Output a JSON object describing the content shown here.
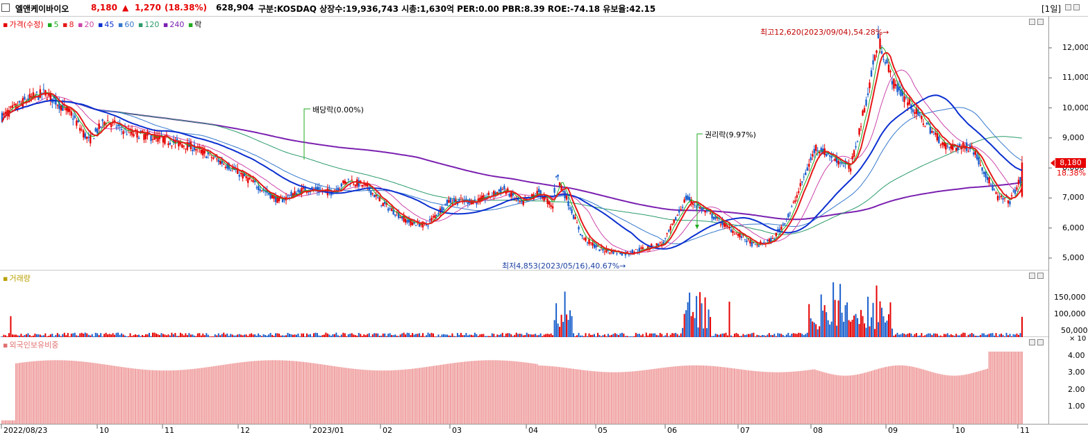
{
  "header": {
    "name": "엘앤케이바이오",
    "price": "8,180",
    "change_arrow": "▲",
    "change": "1,270",
    "change_pct": "(18.38%)",
    "volume": "628,904",
    "info": "구분:KOSDAQ 상장수:19,936,743 시총:1,630억 PER:0.00 PBR:8.39 ROE:-74.18 유보율:42.15",
    "period": "[1일]"
  },
  "colors": {
    "up": "#e60000",
    "down": "#1a5fcc",
    "ma5": "#1faa1f",
    "ma8": "#e61919",
    "ma20": "#cc44aa",
    "ma45": "#0a2fd0",
    "ma60": "#3377cc",
    "ma120": "#2a9a6a",
    "ma240": "#7a1fb0",
    "foreign": "#f0a0a0"
  },
  "price_panel": {
    "legend": {
      "label": "가격(수정)",
      "ma5": "5",
      "ma8": "8",
      "ma20": "20",
      "ma45": "45",
      "ma60": "60",
      "ma120": "120",
      "ma240": "240",
      "rak": "락"
    },
    "y_ticks": [
      "12,000",
      "11,000",
      "10,000",
      "9,000",
      "8,000",
      "7,000",
      "6,000",
      "5,000"
    ],
    "current_price_tag": "8,180",
    "current_pct_tag": "18.38%",
    "annotations": {
      "high": "최고12,620(2023/09/04),54.28%→",
      "low": "최저4,853(2023/05/16),40.67%→",
      "dividend": "배당락(0.00%)",
      "rights": "권리락(9.97%)"
    }
  },
  "volume_panel": {
    "label": "거래량",
    "y_ticks": [
      "150,000",
      "100,000",
      "50,000"
    ],
    "unit": "× 10"
  },
  "foreign_panel": {
    "label": "외국인보유비중",
    "y_ticks": [
      "4.00",
      "3.00",
      "2.00",
      "1.00"
    ]
  },
  "x_axis": [
    "2022/08/23",
    "10",
    "11",
    "12",
    "2023/01",
    "02",
    "03",
    "04",
    "05",
    "06",
    "07",
    "08",
    "09",
    "10",
    "11"
  ],
  "chart_data": {
    "type": "candlestick",
    "series": [
      {
        "name": "가격(수정)",
        "anchors": [
          [
            0,
            9700
          ],
          [
            15,
            10300
          ],
          [
            25,
            10500
          ],
          [
            40,
            9800
          ],
          [
            50,
            8900
          ],
          [
            60,
            9600
          ],
          [
            72,
            9200
          ],
          [
            90,
            9000
          ],
          [
            110,
            8700
          ],
          [
            130,
            8100
          ],
          [
            150,
            7300
          ],
          [
            160,
            6900
          ],
          [
            175,
            7300
          ],
          [
            190,
            7200
          ],
          [
            200,
            7600
          ],
          [
            210,
            7400
          ],
          [
            220,
            6800
          ],
          [
            235,
            6200
          ],
          [
            245,
            6100
          ],
          [
            258,
            6900
          ],
          [
            275,
            6900
          ],
          [
            290,
            7300
          ],
          [
            300,
            6800
          ],
          [
            310,
            7200
          ],
          [
            318,
            6700
          ],
          [
            320,
            7800
          ],
          [
            328,
            6700
          ],
          [
            335,
            5700
          ],
          [
            345,
            5300
          ],
          [
            360,
            5150
          ],
          [
            370,
            5300
          ],
          [
            382,
            5500
          ],
          [
            395,
            7000
          ],
          [
            405,
            6600
          ],
          [
            420,
            6000
          ],
          [
            435,
            5400
          ],
          [
            445,
            5600
          ],
          [
            455,
            6500
          ],
          [
            470,
            8700
          ],
          [
            490,
            8000
          ],
          [
            500,
            10500
          ],
          [
            506,
            12300
          ],
          [
            515,
            10800
          ],
          [
            530,
            9700
          ],
          [
            545,
            8700
          ],
          [
            560,
            8700
          ],
          [
            575,
            7000
          ],
          [
            582,
            6900
          ],
          [
            588,
            7600
          ]
        ]
      },
      {
        "name": "5"
      },
      {
        "name": "8"
      },
      {
        "name": "20"
      },
      {
        "name": "45"
      },
      {
        "name": "60"
      },
      {
        "name": "120"
      },
      {
        "name": "240"
      }
    ],
    "x_range": [
      "2022/08/23",
      "2023/11"
    ],
    "ylim": [
      4700,
      12900
    ],
    "high": {
      "value": 12620,
      "date": "2023/09/04"
    },
    "low": {
      "value": 4853,
      "date": "2023/05/16"
    },
    "last": 8180
  }
}
